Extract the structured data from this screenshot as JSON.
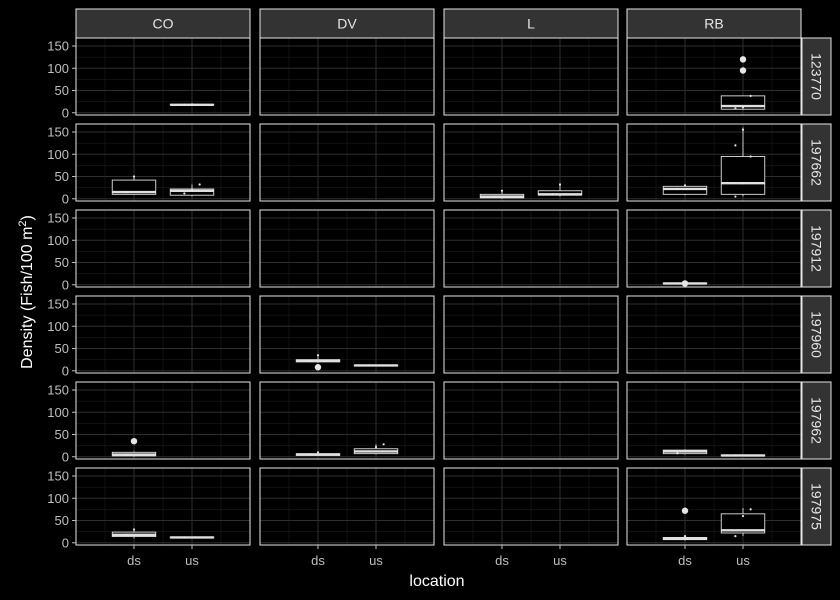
{
  "chart_data": {
    "type": "boxplot-facet",
    "xlabel": "location",
    "ylabel": "Density (Fish/100 m²)",
    "ylabel_parts": {
      "main": "Density (Fish/100 m",
      "sup": "2",
      "close": ")"
    },
    "col_facets": [
      "CO",
      "DV",
      "L",
      "RB"
    ],
    "row_facets": [
      "123770",
      "197662",
      "197912",
      "197960",
      "197962",
      "197975"
    ],
    "categories": [
      "ds",
      "us"
    ],
    "y_ticks": [
      0,
      50,
      100,
      150
    ],
    "y_tick_labels": [
      "0",
      "50",
      "100",
      "150"
    ],
    "ylim": [
      -5,
      168
    ],
    "boxes": [
      {
        "row": "123770",
        "col": "CO",
        "cat": "us",
        "min": 18,
        "q1": 18,
        "median": 18,
        "q3": 19,
        "max": 19,
        "outliers": [],
        "points": [
          18,
          19
        ]
      },
      {
        "row": "123770",
        "col": "RB",
        "cat": "us",
        "min": 8,
        "q1": 8,
        "median": 15,
        "q3": 38,
        "max": 38,
        "outliers": [
          95,
          120
        ],
        "points": [
          10,
          12,
          38
        ]
      },
      {
        "row": "197662",
        "col": "CO",
        "cat": "ds",
        "min": 10,
        "q1": 10,
        "median": 15,
        "q3": 42,
        "max": 50,
        "outliers": [],
        "points": [
          15,
          50
        ]
      },
      {
        "row": "197662",
        "col": "CO",
        "cat": "us",
        "min": 5,
        "q1": 8,
        "median": 18,
        "q3": 22,
        "max": 32,
        "outliers": [],
        "points": [
          12,
          20,
          32
        ]
      },
      {
        "row": "197662",
        "col": "L",
        "cat": "ds",
        "min": 0,
        "q1": 2,
        "median": 5,
        "q3": 10,
        "max": 18,
        "outliers": [],
        "points": [
          5,
          18
        ]
      },
      {
        "row": "197662",
        "col": "L",
        "cat": "us",
        "min": 5,
        "q1": 8,
        "median": 10,
        "q3": 18,
        "max": 32,
        "outliers": [],
        "points": [
          10,
          32
        ]
      },
      {
        "row": "197662",
        "col": "RB",
        "cat": "ds",
        "min": 8,
        "q1": 10,
        "median": 22,
        "q3": 28,
        "max": 33,
        "outliers": [],
        "points": [
          22,
          30
        ]
      },
      {
        "row": "197662",
        "col": "RB",
        "cat": "us",
        "min": 5,
        "q1": 10,
        "median": 35,
        "q3": 95,
        "max": 160,
        "outliers": [],
        "points": [
          5,
          35,
          95,
          120,
          155
        ]
      },
      {
        "row": "197912",
        "col": "RB",
        "cat": "ds",
        "min": 2,
        "q1": 2,
        "median": 3,
        "q3": 4,
        "max": 4,
        "outliers": [
          3
        ],
        "points": [
          3
        ]
      },
      {
        "row": "197960",
        "col": "DV",
        "cat": "ds",
        "min": 18,
        "q1": 20,
        "median": 22,
        "q3": 25,
        "max": 35,
        "outliers": [
          8
        ],
        "points": [
          22,
          35
        ]
      },
      {
        "row": "197960",
        "col": "DV",
        "cat": "us",
        "min": 11,
        "q1": 11,
        "median": 12,
        "q3": 13,
        "max": 13,
        "outliers": [],
        "points": [
          12
        ]
      },
      {
        "row": "197962",
        "col": "CO",
        "cat": "ds",
        "min": 0,
        "q1": 2,
        "median": 5,
        "q3": 10,
        "max": 12,
        "outliers": [
          35
        ],
        "points": [
          5
        ]
      },
      {
        "row": "197962",
        "col": "DV",
        "cat": "ds",
        "min": 2,
        "q1": 3,
        "median": 5,
        "q3": 7,
        "max": 10,
        "outliers": [],
        "points": [
          5,
          10
        ]
      },
      {
        "row": "197962",
        "col": "DV",
        "cat": "us",
        "min": 5,
        "q1": 7,
        "median": 12,
        "q3": 18,
        "max": 28,
        "outliers": [],
        "points": [
          12,
          22,
          28
        ]
      },
      {
        "row": "197962",
        "col": "RB",
        "cat": "ds",
        "min": 5,
        "q1": 7,
        "median": 12,
        "q3": 15,
        "max": 15,
        "outliers": [],
        "points": [
          8,
          14
        ]
      },
      {
        "row": "197962",
        "col": "RB",
        "cat": "us",
        "min": 2,
        "q1": 2,
        "median": 3,
        "q3": 4,
        "max": 4,
        "outliers": [],
        "points": [
          3
        ]
      },
      {
        "row": "197975",
        "col": "CO",
        "cat": "ds",
        "min": 10,
        "q1": 14,
        "median": 18,
        "q3": 24,
        "max": 30,
        "outliers": [],
        "points": [
          18,
          30
        ]
      },
      {
        "row": "197975",
        "col": "CO",
        "cat": "us",
        "min": 10,
        "q1": 11,
        "median": 12,
        "q3": 13,
        "max": 13,
        "outliers": [],
        "points": [
          12
        ]
      },
      {
        "row": "197975",
        "col": "RB",
        "cat": "ds",
        "min": 5,
        "q1": 7,
        "median": 10,
        "q3": 12,
        "max": 15,
        "outliers": [
          72
        ],
        "points": [
          10,
          15
        ]
      },
      {
        "row": "197975",
        "col": "RB",
        "cat": "us",
        "min": 15,
        "q1": 22,
        "median": 28,
        "q3": 65,
        "max": 78,
        "outliers": [],
        "points": [
          15,
          60,
          75
        ]
      }
    ],
    "colors": {
      "background": "#000000",
      "panel_bg": "#000000",
      "panel_border": "#e6e6e6",
      "grid_major": "#2e2e2e",
      "grid_minor": "#1a1a1a",
      "strip_bg": "#333333",
      "strip_text": "#e6e6e6",
      "axis_text": "#bfbfbf",
      "title_text": "#ffffff",
      "box_stroke": "#e0e0e0",
      "box_fill": "#000000",
      "point": "#e6e6e6"
    },
    "grid": true,
    "legend": "none"
  }
}
